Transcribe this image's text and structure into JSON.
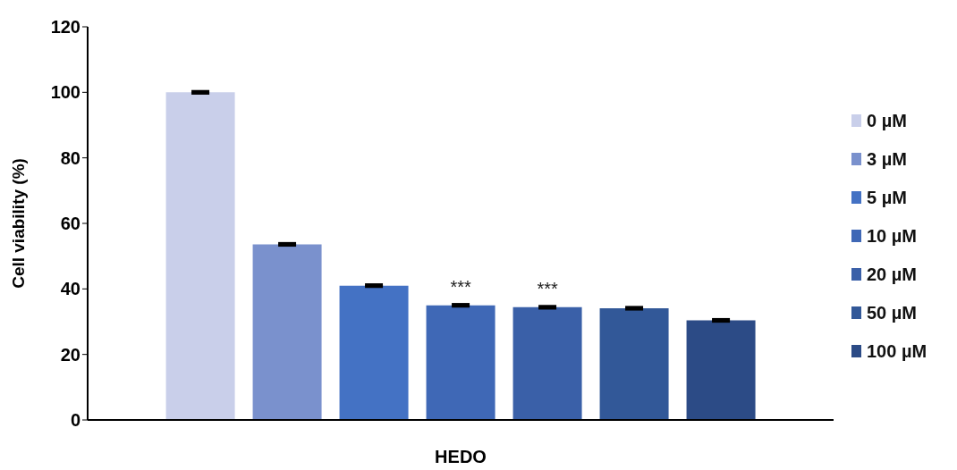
{
  "chart_data": {
    "type": "bar",
    "xlabel": "HEDO",
    "ylabel": "Cell viability (%)",
    "categories": [
      null
    ],
    "series": [
      {
        "name": "0 µM",
        "color": "#c9cfea",
        "values": [
          100
        ],
        "errors": [
          0.3
        ]
      },
      {
        "name": "3 µM",
        "color": "#7a91cd",
        "values": [
          53.6
        ],
        "errors": [
          0.3
        ]
      },
      {
        "name": "5 µM",
        "color": "#4472c4",
        "values": [
          41
        ],
        "errors": [
          0.3
        ]
      },
      {
        "name": "10 µM",
        "color": "#3f68b6",
        "values": [
          35
        ],
        "errors": [
          0.3
        ],
        "value_labels": [
          "***"
        ]
      },
      {
        "name": "20 µM",
        "color": "#3a60a8",
        "values": [
          34.4
        ],
        "errors": [
          0.3
        ],
        "value_labels": [
          "***"
        ]
      },
      {
        "name": "50 µM",
        "color": "#325898",
        "values": [
          34.1
        ],
        "errors": [
          0.3
        ]
      },
      {
        "name": "100 µM",
        "color": "#2c4b86",
        "values": [
          30.4
        ],
        "errors": [
          0.3
        ]
      }
    ],
    "ylim": [
      0,
      120
    ],
    "yticks": [
      0,
      20,
      40,
      60,
      80,
      100,
      120
    ],
    "grid": false,
    "legend": "right"
  }
}
